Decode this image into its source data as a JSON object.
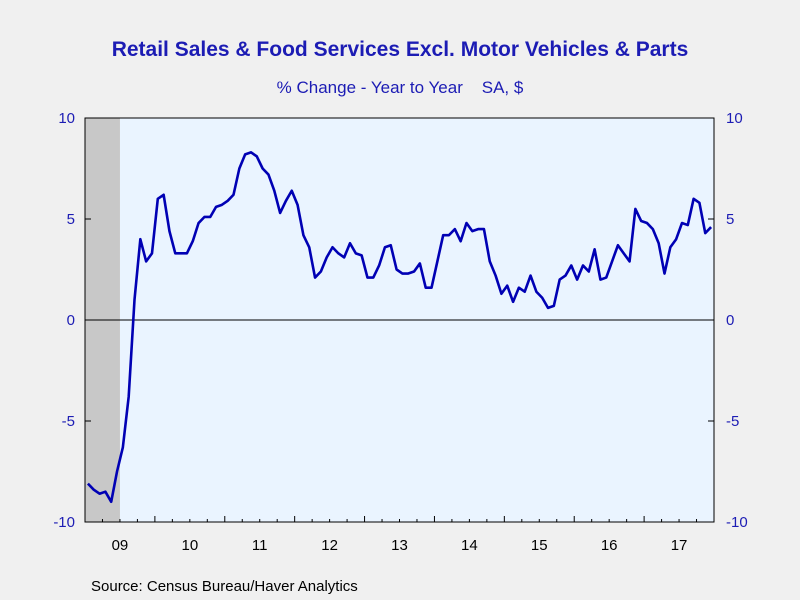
{
  "chart_data": {
    "type": "line",
    "title": "Retail Sales & Food Services Excl. Motor Vehicles & Parts",
    "subtitle": "% Change - Year to Year    SA, $",
    "source": "Source:  Census Bureau/Haver Analytics",
    "ylim": [
      -10,
      10
    ],
    "y_ticks": [
      10,
      5,
      0,
      -5,
      -10
    ],
    "y_tick_labels": [
      "10",
      "5",
      "0",
      "-5",
      "-10"
    ],
    "x_range": [
      "2009-01",
      "2017-12"
    ],
    "x_tick_labels": [
      "09",
      "10",
      "11",
      "12",
      "13",
      "14",
      "15",
      "16",
      "17"
    ],
    "recession_shading": {
      "start": "2009-01",
      "end": "2009-06"
    },
    "zero_line": true,
    "grid": false,
    "colors": {
      "line": "#0000b4",
      "plot_bg": "#eaf4ff",
      "text": "#1c1cb4",
      "recession": "#c8c8c8"
    },
    "series": [
      {
        "x": [
          "2009-01",
          "2009-02",
          "2009-03",
          "2009-04",
          "2009-05",
          "2009-06",
          "2009-07",
          "2009-08",
          "2009-09",
          "2009-10",
          "2009-11",
          "2009-12",
          "2010-01",
          "2010-02",
          "2010-03",
          "2010-04",
          "2010-05",
          "2010-06",
          "2010-07",
          "2010-08",
          "2010-09",
          "2010-10",
          "2010-11",
          "2010-12",
          "2011-01",
          "2011-02",
          "2011-03",
          "2011-04",
          "2011-05",
          "2011-06",
          "2011-07",
          "2011-08",
          "2011-09",
          "2011-10",
          "2011-11",
          "2011-12",
          "2012-01",
          "2012-02",
          "2012-03",
          "2012-04",
          "2012-05",
          "2012-06",
          "2012-07",
          "2012-08",
          "2012-09",
          "2012-10",
          "2012-11",
          "2012-12",
          "2013-01",
          "2013-02",
          "2013-03",
          "2013-04",
          "2013-05",
          "2013-06",
          "2013-07",
          "2013-08",
          "2013-09",
          "2013-10",
          "2013-11",
          "2013-12",
          "2014-01",
          "2014-02",
          "2014-03",
          "2014-04",
          "2014-05",
          "2014-06",
          "2014-07",
          "2014-08",
          "2014-09",
          "2014-10",
          "2014-11",
          "2014-12",
          "2015-01",
          "2015-02",
          "2015-03",
          "2015-04",
          "2015-05",
          "2015-06",
          "2015-07",
          "2015-08",
          "2015-09",
          "2015-10",
          "2015-11",
          "2015-12",
          "2016-01",
          "2016-02",
          "2016-03",
          "2016-04",
          "2016-05",
          "2016-06",
          "2016-07",
          "2016-08",
          "2016-09",
          "2016-10",
          "2016-11",
          "2016-12",
          "2017-01",
          "2017-02",
          "2017-03",
          "2017-04",
          "2017-05",
          "2017-06",
          "2017-07",
          "2017-08",
          "2017-09",
          "2017-10",
          "2017-11",
          "2017-12"
        ],
        "values": [
          -8.1,
          -8.4,
          -8.6,
          -8.5,
          -9.0,
          -7.5,
          -6.3,
          -3.8,
          1.0,
          4.0,
          2.9,
          3.3,
          6.0,
          6.2,
          4.4,
          3.3,
          3.3,
          3.3,
          3.9,
          4.8,
          5.1,
          5.1,
          5.6,
          5.7,
          5.9,
          6.2,
          7.5,
          8.2,
          8.3,
          8.1,
          7.5,
          7.2,
          6.4,
          5.3,
          5.9,
          6.4,
          5.7,
          4.2,
          3.6,
          2.1,
          2.4,
          3.1,
          3.6,
          3.3,
          3.1,
          3.8,
          3.3,
          3.2,
          2.1,
          2.1,
          2.7,
          3.6,
          3.7,
          2.5,
          2.3,
          2.3,
          2.4,
          2.8,
          1.6,
          1.6,
          2.9,
          4.2,
          4.2,
          4.5,
          3.9,
          4.8,
          4.4,
          4.5,
          4.5,
          2.9,
          2.2,
          1.3,
          1.7,
          0.9,
          1.6,
          1.4,
          2.2,
          1.4,
          1.1,
          0.6,
          0.7,
          2.0,
          2.2,
          2.7,
          2.0,
          2.7,
          2.4,
          3.5,
          2.0,
          2.1,
          2.9,
          3.7,
          3.3,
          2.9,
          5.5,
          4.9,
          4.8,
          4.5,
          3.8,
          2.3,
          3.6,
          4.0,
          4.8,
          4.7,
          6.0,
          5.8,
          4.3,
          4.6
        ]
      }
    ]
  }
}
